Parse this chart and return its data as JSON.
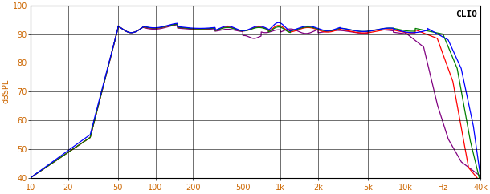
{
  "title": "CLIO",
  "ylabel": "dBSPL",
  "xlabel_ticks": [
    10,
    20,
    50,
    100,
    200,
    500,
    1000,
    2000,
    5000,
    10000,
    20000,
    40000
  ],
  "xlabel_labels": [
    "10",
    "20",
    "50",
    "100",
    "200",
    "500",
    "1k",
    "2k",
    "5k",
    "10k",
    "Hz",
    "40k"
  ],
  "xlim": [
    10,
    40000
  ],
  "ylim": [
    40,
    100
  ],
  "yticks": [
    40,
    50,
    60,
    70,
    80,
    90,
    100
  ],
  "background_color": "#ffffff",
  "grid_color": "#000000",
  "line_colors": [
    "#0000ff",
    "#ff0000",
    "#008000",
    "#800080"
  ],
  "line_width": 0.9
}
